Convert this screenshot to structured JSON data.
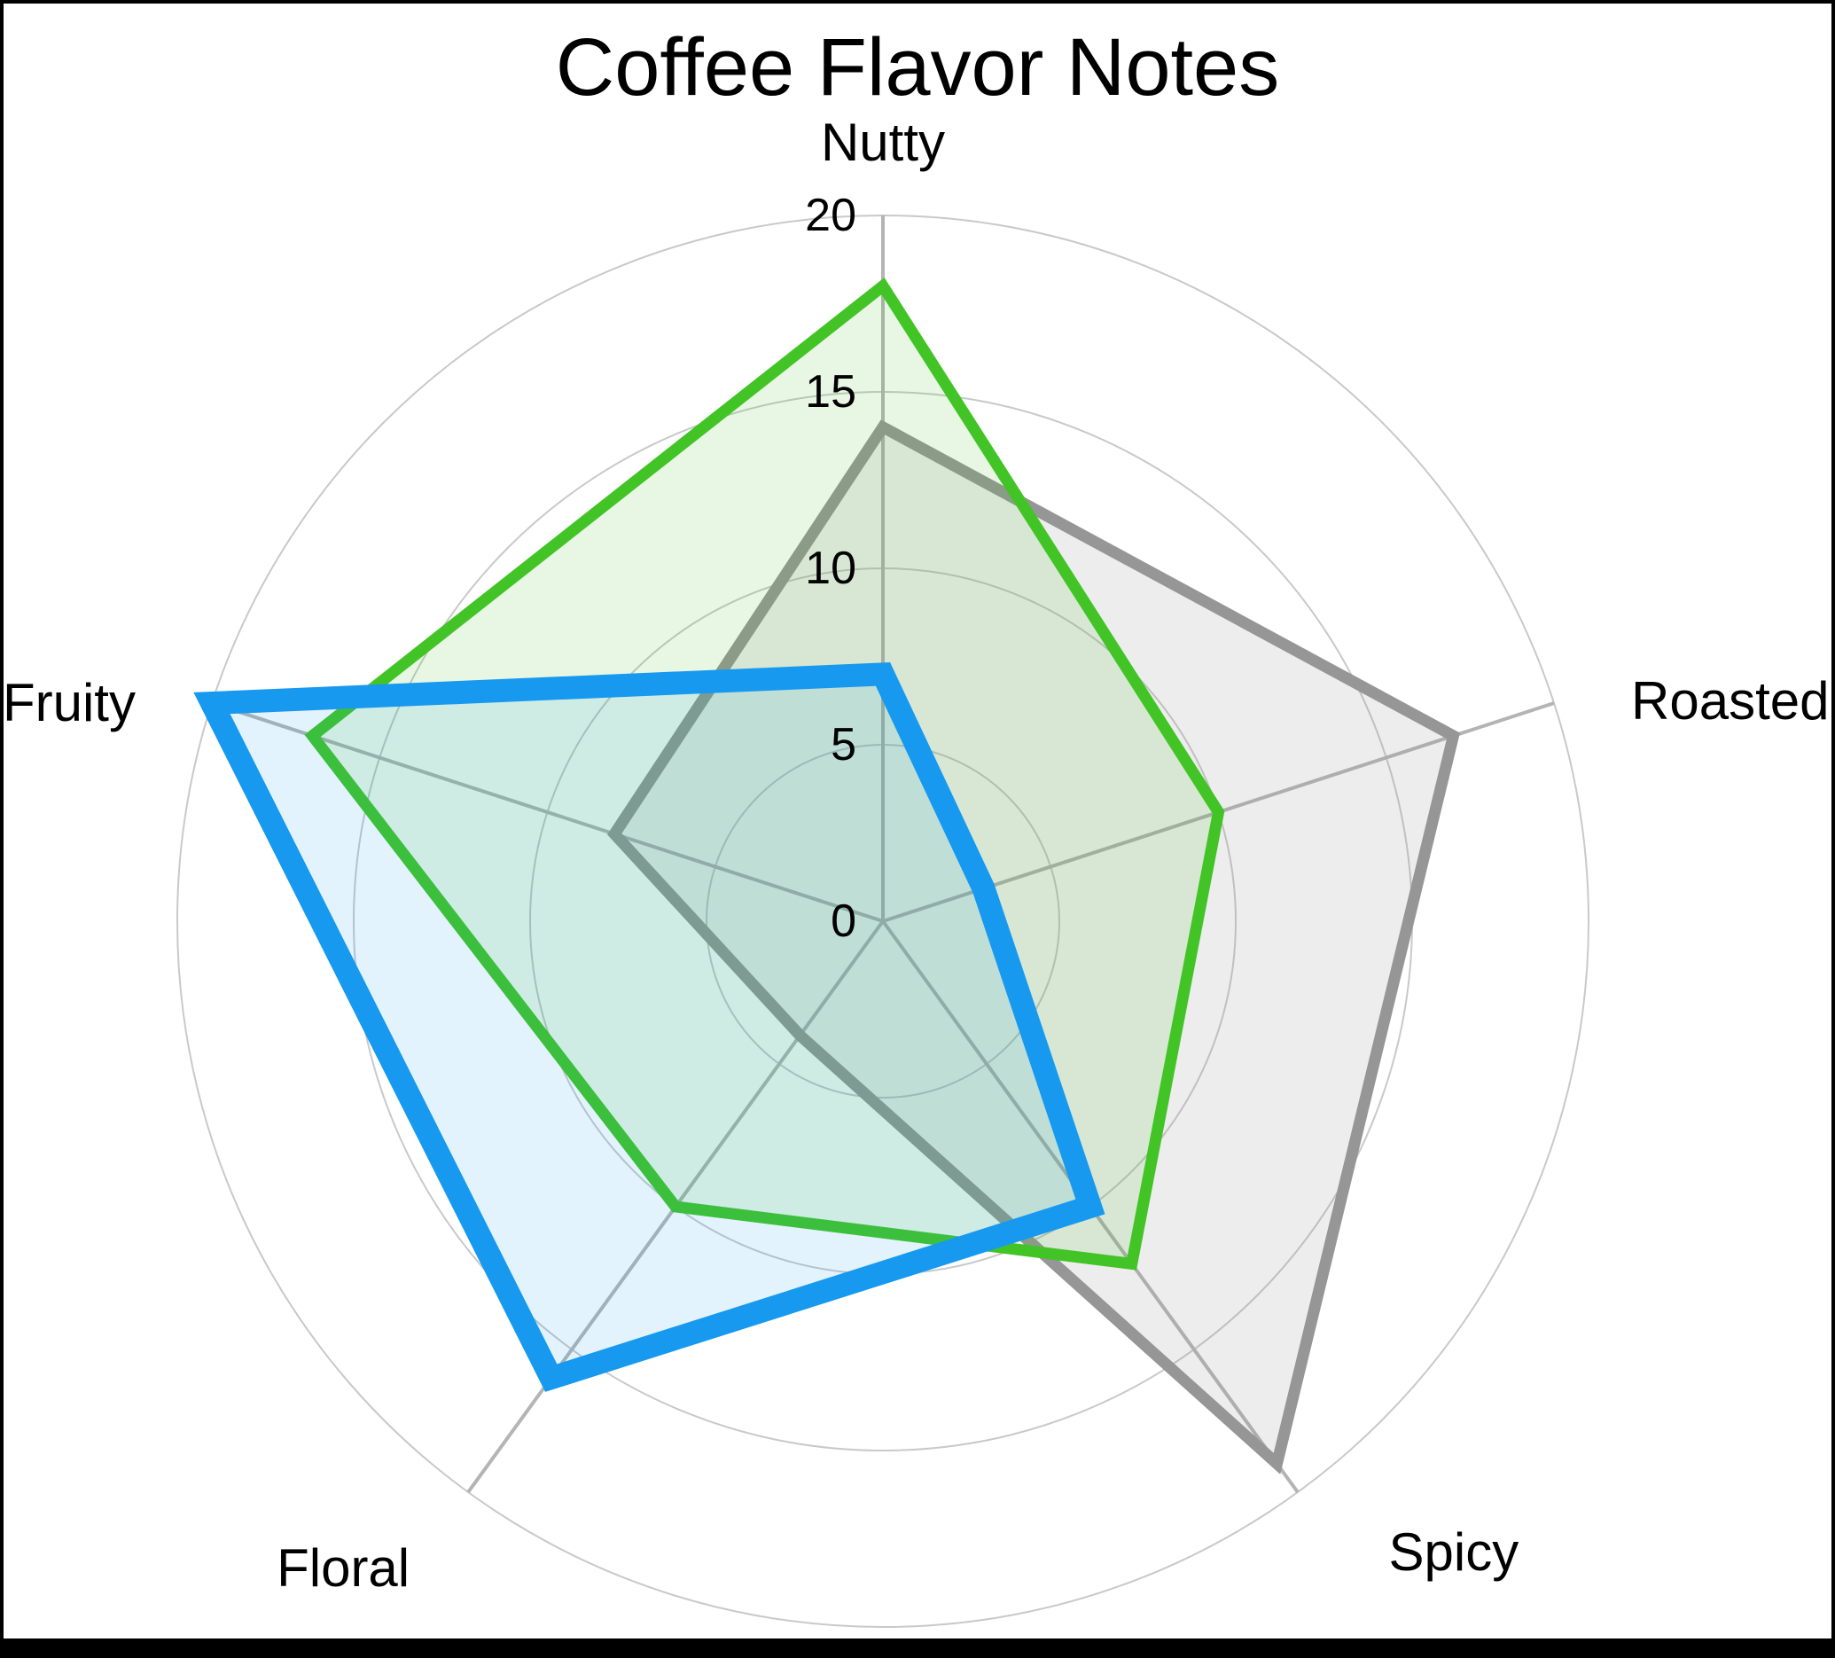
{
  "title": "Coffee Flavor Notes",
  "chart_data": {
    "type": "radar",
    "title": "Coffee Flavor Notes",
    "categories": [
      "Nutty",
      "Roasted",
      "Spicy",
      "Floral",
      "Fruity"
    ],
    "series": [
      {
        "name": "gray",
        "color": "#969696",
        "fill_opacity": 0.17,
        "values": [
          14,
          17,
          19,
          4,
          8
        ]
      },
      {
        "name": "green",
        "color": "#42C426",
        "fill_opacity": 0.13,
        "values": [
          18,
          10,
          12,
          10,
          17
        ]
      },
      {
        "name": "blue",
        "color": "#1799F0",
        "fill_opacity": 0.12,
        "values": [
          7,
          3,
          10,
          16,
          20
        ]
      }
    ],
    "r_axis": {
      "min": 0,
      "max": 20,
      "ticks": [
        0,
        5,
        10,
        15,
        20
      ]
    },
    "grid": true,
    "legend": "none",
    "grid_color": "#c9c9c9",
    "spoke_color": "#b4b4b4",
    "text_color": "#000000",
    "background_color": "#ffffff"
  }
}
